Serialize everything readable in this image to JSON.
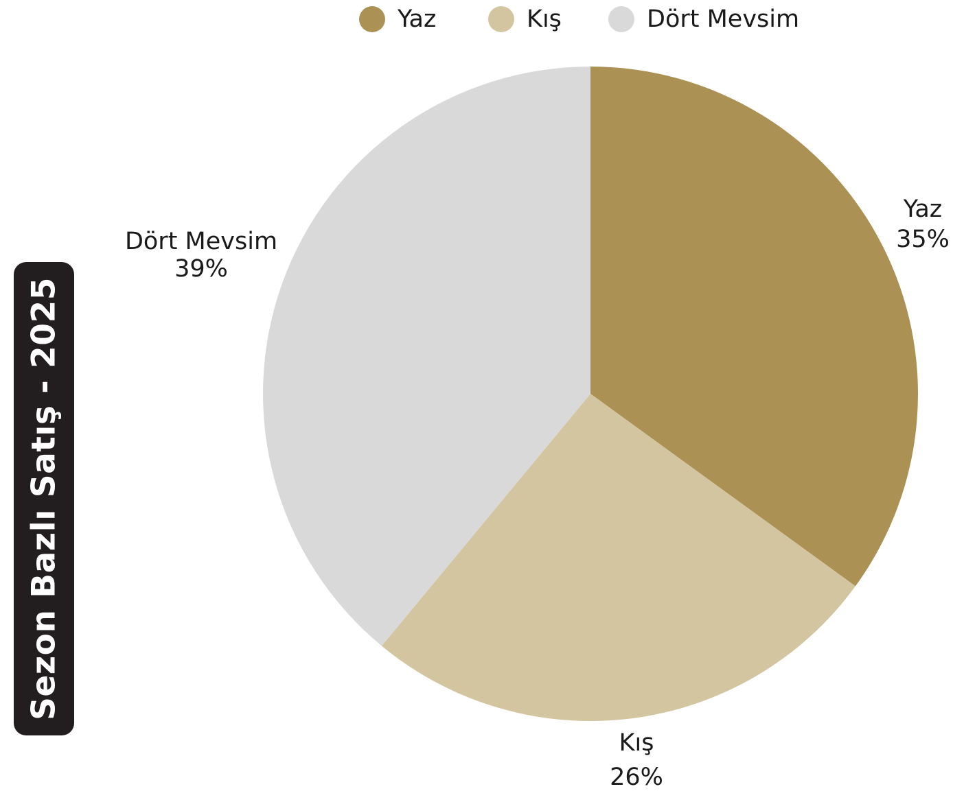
{
  "chart_data": {
    "type": "pie",
    "title": "Sezon Bazlı Satış - 2025",
    "legend_position": "top",
    "categories": [
      "Yaz",
      "Kış",
      "Dört Mevsim"
    ],
    "values": [
      35,
      26,
      39
    ],
    "value_labels": [
      "35%",
      "26%",
      "39%"
    ],
    "colors": [
      "#ab9153",
      "#d3c59f",
      "#d9d9d9"
    ]
  }
}
